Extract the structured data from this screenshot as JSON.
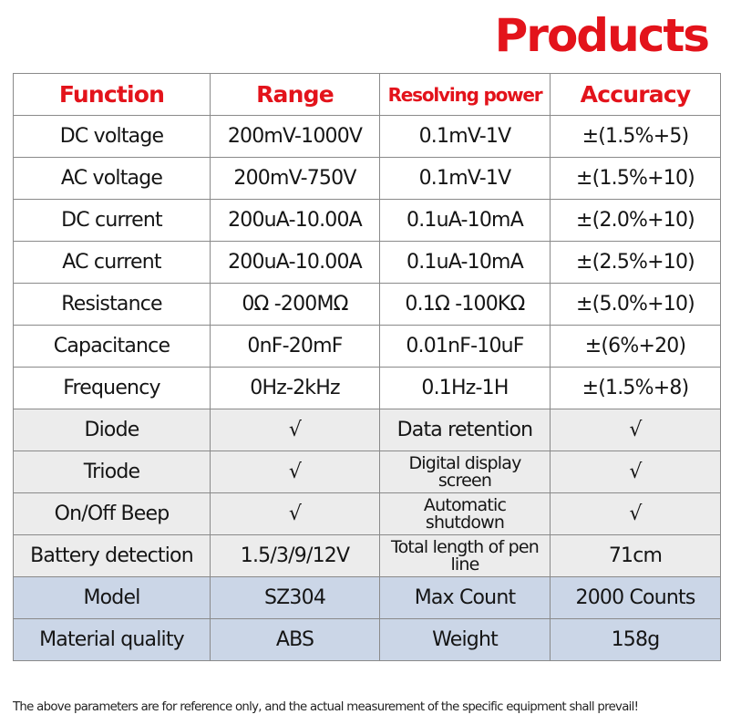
{
  "header": {
    "title": "Products"
  },
  "table": {
    "columns": [
      "Function",
      "Range",
      "Resolving power",
      "Accuracy"
    ],
    "rows": [
      [
        "DC voltage",
        "200mV-1000V",
        "0.1mV-1V",
        "±(1.5%+5)"
      ],
      [
        "AC voltage",
        "200mV-750V",
        "0.1mV-1V",
        "±(1.5%+10)"
      ],
      [
        "DC current",
        "200uA-10.00A",
        "0.1uA-10mA",
        "±(2.0%+10)"
      ],
      [
        "AC current",
        "200uA-10.00A",
        "0.1uA-10mA",
        "±(2.5%+10)"
      ],
      [
        "Resistance",
        "0Ω -200MΩ",
        "0.1Ω -100KΩ",
        "±(5.0%+10)"
      ],
      [
        "Capacitance",
        "0nF-20mF",
        "0.01nF-10uF",
        "±(6%+20)"
      ],
      [
        "Frequency",
        "0Hz-2kHz",
        "0.1Hz-1H",
        "±(1.5%+8)"
      ],
      [
        "Diode",
        "√",
        "Data retention",
        "√"
      ],
      [
        "Triode",
        "√",
        "Digital display screen",
        "√"
      ],
      [
        "On/Off Beep",
        "√",
        "Automatic shutdown",
        "√"
      ],
      [
        "Battery detection",
        "1.5/3/9/12V",
        "Total length of pen line",
        "71cm"
      ],
      [
        "Model",
        "SZ304",
        "Max Count",
        "2000 Counts"
      ],
      [
        "Material quality",
        "ABS",
        "Weight",
        "158g"
      ]
    ]
  },
  "footer": {
    "note": "The above parameters are for reference only, and the actual measurement of the specific equipment shall prevail!"
  }
}
